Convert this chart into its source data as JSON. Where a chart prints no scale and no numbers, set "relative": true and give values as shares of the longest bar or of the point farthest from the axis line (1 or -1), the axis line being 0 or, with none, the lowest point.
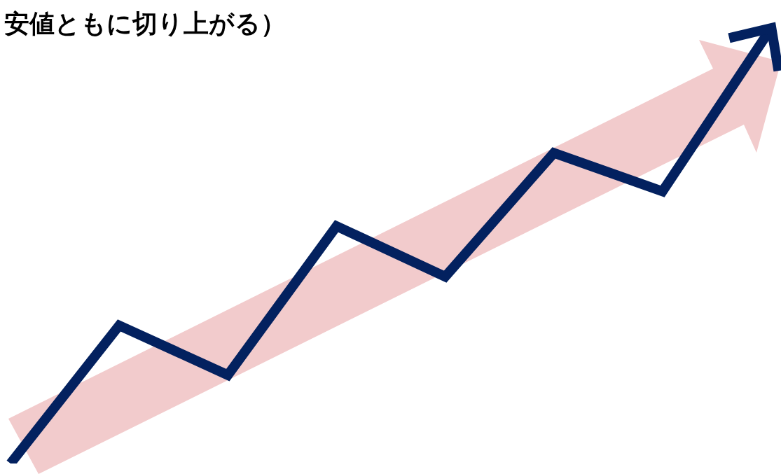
{
  "chart_data": {
    "type": "line",
    "title": "安値ともに切り上がる）",
    "relative": true,
    "categories": [
      null,
      null,
      null,
      null,
      null,
      null,
      null,
      null
    ],
    "series": [
      {
        "color": "#03215f",
        "values": [
          0,
          0.317,
          0.203,
          0.545,
          0.429,
          0.713,
          0.625,
          1
        ]
      }
    ],
    "marker": "none",
    "line_style": "solid",
    "grid": false,
    "legend": false
  }
}
